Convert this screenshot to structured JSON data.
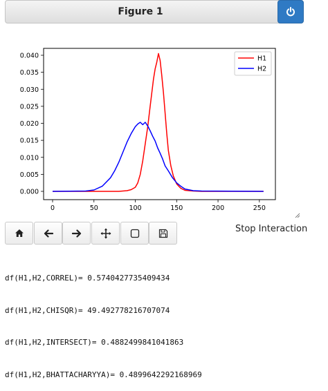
{
  "figure": {
    "title": "Figure 1"
  },
  "chart_data": {
    "type": "line",
    "xlim": [
      0,
      256
    ],
    "ylim": [
      0,
      0.04
    ],
    "xticks": [
      "0",
      "50",
      "100",
      "150",
      "200",
      "250"
    ],
    "xtick_values": [
      0,
      50,
      100,
      150,
      200,
      250
    ],
    "yticks": [
      "0.000",
      "0.005",
      "0.010",
      "0.015",
      "0.020",
      "0.025",
      "0.030",
      "0.035",
      "0.040"
    ],
    "ytick_values": [
      0,
      0.005,
      0.01,
      0.015,
      0.02,
      0.025,
      0.03,
      0.035,
      0.04
    ],
    "legend_position": "top-right",
    "series": [
      {
        "name": "H1",
        "color": "#ff0000",
        "x": [
          0,
          80,
          90,
          95,
          100,
          103,
          106,
          109,
          112,
          115,
          118,
          120,
          122,
          124,
          126,
          128,
          129,
          130,
          132,
          134,
          136,
          138,
          140,
          143,
          146,
          150,
          155,
          160,
          170,
          180,
          255
        ],
        "y": [
          0,
          0,
          0.0002,
          0.0005,
          0.0012,
          0.0025,
          0.005,
          0.009,
          0.014,
          0.019,
          0.025,
          0.029,
          0.033,
          0.036,
          0.038,
          0.0405,
          0.0395,
          0.0385,
          0.034,
          0.029,
          0.023,
          0.017,
          0.012,
          0.0075,
          0.0045,
          0.0022,
          0.0009,
          0.0003,
          0.0001,
          0,
          0
        ]
      },
      {
        "name": "H2",
        "color": "#0000ff",
        "x": [
          0,
          40,
          50,
          60,
          70,
          75,
          80,
          85,
          90,
          95,
          100,
          103,
          106,
          109,
          112,
          115,
          118,
          121,
          124,
          127,
          130,
          133,
          136,
          140,
          145,
          150,
          155,
          160,
          170,
          180,
          255
        ],
        "y": [
          0,
          0.0001,
          0.0004,
          0.0015,
          0.004,
          0.006,
          0.0085,
          0.0115,
          0.0145,
          0.017,
          0.019,
          0.0198,
          0.0203,
          0.0196,
          0.0203,
          0.0192,
          0.0178,
          0.0162,
          0.0148,
          0.0128,
          0.0112,
          0.0095,
          0.0075,
          0.006,
          0.004,
          0.0025,
          0.0015,
          0.0007,
          0.0002,
          0.0001,
          0
        ]
      }
    ]
  },
  "toolbar": {
    "buttons": [
      "home",
      "back",
      "forward",
      "pan",
      "zoom",
      "save"
    ],
    "stop_label": "Stop Interaction"
  },
  "output": {
    "lines": [
      "df(H1,H2,CORREL)= 0.5740427735409434",
      "df(H1,H2,CHISQR)= 49.492778216707074",
      "df(H1,H2,INTERSECT)= 0.4882499841041863",
      "df(H1,H2,BHATTACHARYYA)= 0.4899642292168969"
    ]
  },
  "icons": {
    "power": "power-icon",
    "home": "home-icon",
    "back": "arrow-left-icon",
    "forward": "arrow-right-icon",
    "pan": "move-icon",
    "zoom": "zoom-rect-icon",
    "save": "save-icon",
    "resize": "resize-handle-icon"
  }
}
